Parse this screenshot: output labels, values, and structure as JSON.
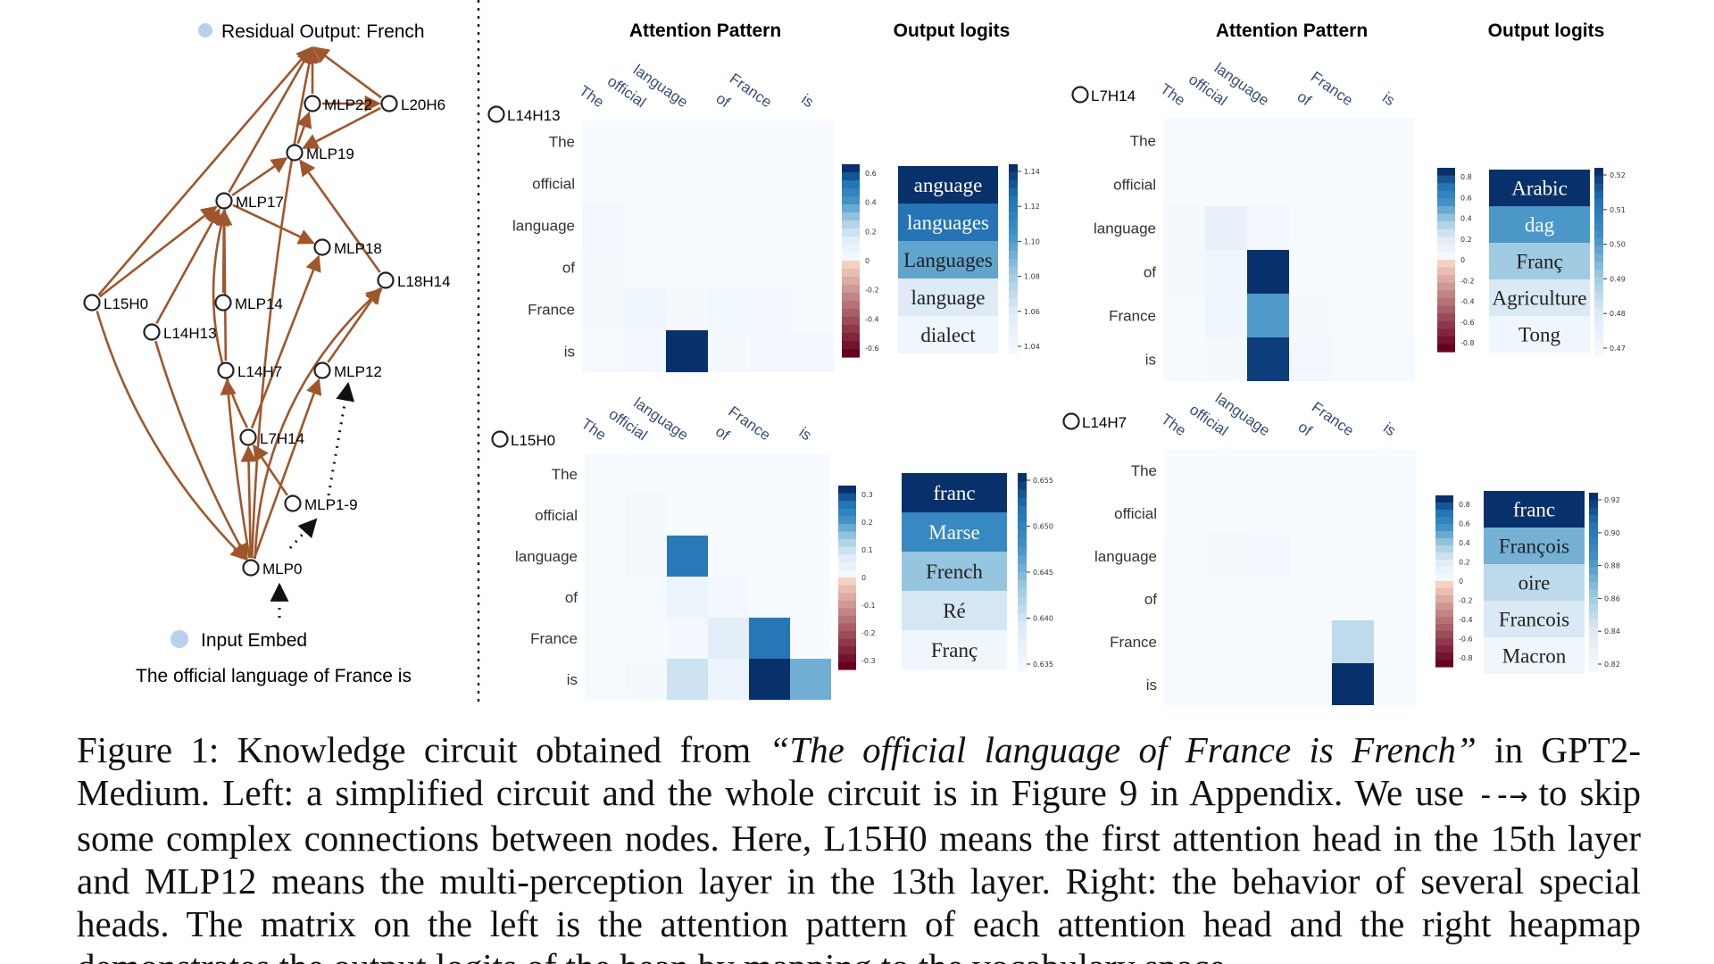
{
  "circuit": {
    "top_label": "Residual Output: French",
    "bottom_label": "Input Embed",
    "sentence": "The official language of France is",
    "nodes": [
      {
        "id": "MLP22",
        "label": "MLP22"
      },
      {
        "id": "L20H6",
        "label": "L20H6"
      },
      {
        "id": "MLP19",
        "label": "MLP19"
      },
      {
        "id": "MLP17",
        "label": "MLP17"
      },
      {
        "id": "MLP18",
        "label": "MLP18"
      },
      {
        "id": "L18H14",
        "label": "L18H14"
      },
      {
        "id": "L15H0",
        "label": "L15H0"
      },
      {
        "id": "MLP14",
        "label": "MLP14"
      },
      {
        "id": "L14H13",
        "label": "L14H13"
      },
      {
        "id": "L14H7",
        "label": "L14H7"
      },
      {
        "id": "MLP12",
        "label": "MLP12"
      },
      {
        "id": "L7H14",
        "label": "L7H14"
      },
      {
        "id": "MLP1-9",
        "label": "MLP1-9"
      },
      {
        "id": "MLP0",
        "label": "MLP0"
      }
    ],
    "colors": {
      "edge": "#a0562c",
      "node": "#c8863f",
      "dot": "#b8d0ec"
    }
  },
  "panel_headers": {
    "attention": "Attention Pattern",
    "logits": "Output logits"
  },
  "tokens_cols": [
    "The",
    "official",
    "language",
    "of",
    "France",
    "is"
  ],
  "tokens_rows": [
    "The",
    "official",
    "language",
    "of",
    "France",
    "is"
  ],
  "panels": [
    {
      "head": "L14H13",
      "attention": [
        [
          0,
          0,
          0,
          0,
          0,
          0
        ],
        [
          0.01,
          0.01,
          0,
          0,
          0,
          0
        ],
        [
          0.06,
          0.02,
          0.02,
          0,
          0,
          0
        ],
        [
          0.03,
          0.02,
          0.02,
          0.02,
          0,
          0
        ],
        [
          0.03,
          0.08,
          0.03,
          0.07,
          0.04,
          0
        ],
        [
          0.02,
          0.04,
          1.0,
          0.03,
          0.05,
          0.04
        ]
      ],
      "att_ticks": [
        "0.6",
        "0.4",
        "0.2",
        "0",
        "-0.2",
        "-0.4",
        "-0.6"
      ],
      "tokens": [
        "anguage",
        "languages",
        "Languages",
        "language",
        "dialect"
      ],
      "logits": [
        1.14,
        1.12,
        1.09,
        1.05,
        1.03
      ],
      "logit_ticks": [
        "1.14",
        "1.12",
        "1.10",
        "1.08",
        "1.06",
        "1.04"
      ]
    },
    {
      "head": "L7H14",
      "attention": [
        [
          0,
          0,
          0,
          0,
          0,
          0
        ],
        [
          0,
          0,
          0,
          0,
          0,
          0
        ],
        [
          0.03,
          0.15,
          0.04,
          0,
          0,
          0
        ],
        [
          0.03,
          0.08,
          1.0,
          0.02,
          0,
          0
        ],
        [
          0.02,
          0.08,
          0.62,
          0.03,
          0.02,
          0
        ],
        [
          0.02,
          0.03,
          0.97,
          0.04,
          0.02,
          0.02
        ]
      ],
      "att_ticks": [
        "0.8",
        "0.6",
        "0.4",
        "0.2",
        "0",
        "-0.2",
        "-0.4",
        "-0.6",
        "-0.8"
      ],
      "tokens": [
        "Arabic",
        "dag",
        "Franç",
        "Agriculture",
        "Tong"
      ],
      "logits": [
        0.52,
        0.5,
        0.49,
        0.48,
        0.47
      ],
      "logit_ticks": [
        "0.52",
        "0.51",
        "0.50",
        "0.49",
        "0.48",
        "0.47"
      ]
    },
    {
      "head": "L15H0",
      "attention": [
        [
          0.02,
          0,
          0,
          0,
          0,
          0
        ],
        [
          0.02,
          0.03,
          0,
          0,
          0,
          0
        ],
        [
          0.02,
          0.03,
          0.8,
          0,
          0,
          0
        ],
        [
          0.02,
          0.02,
          0.12,
          0.05,
          0,
          0
        ],
        [
          0.01,
          0.02,
          0.05,
          0.2,
          0.82,
          0
        ],
        [
          0.02,
          0.03,
          0.3,
          0.1,
          1.0,
          0.55
        ]
      ],
      "att_ticks": [
        "0.3",
        "0.2",
        "0.1",
        "0",
        "-0.1",
        "-0.2",
        "-0.3"
      ],
      "tokens": [
        "franc",
        "Marse",
        "French",
        "Ré",
        "Franç"
      ],
      "logits": [
        0.657,
        0.651,
        0.646,
        0.642,
        0.638
      ],
      "logit_ticks": [
        "0.655",
        "0.650",
        "0.645",
        "0.640",
        "0.635"
      ]
    },
    {
      "head": "L14H7",
      "attention": [
        [
          0,
          0,
          0,
          0,
          0,
          0
        ],
        [
          0,
          0,
          0,
          0,
          0,
          0
        ],
        [
          0.02,
          0.03,
          0.04,
          0,
          0,
          0
        ],
        [
          0.01,
          0.01,
          0.01,
          0.01,
          0,
          0
        ],
        [
          0.01,
          0.01,
          0.01,
          0.01,
          0.35,
          0
        ],
        [
          0.01,
          0.01,
          0.01,
          0.01,
          1.0,
          0.01
        ]
      ],
      "att_ticks": [
        "0.8",
        "0.6",
        "0.4",
        "0.2",
        "0",
        "-0.2",
        "-0.4",
        "-0.6",
        "-0.8"
      ],
      "tokens": [
        "franc",
        "François",
        "oire",
        "Francois",
        "Macron"
      ],
      "logits": [
        0.92,
        0.87,
        0.85,
        0.84,
        0.82
      ],
      "logit_ticks": [
        "0.92",
        "0.90",
        "0.88",
        "0.86",
        "0.84",
        "0.82"
      ]
    }
  ],
  "caption": {
    "prefix": "Figure 1: Knowledge circuit obtained from ",
    "quote": "“The official language of France is French”",
    "mid": " in GPT2-Medium. Left: a simplified circuit and the whole circuit is in Figure 9 in Appendix. We use ",
    "arrow": "--→",
    "rest": " to skip some complex connections between nodes. Here, L15H0 means the first attention head in the 15th layer and MLP12 means the multi-perception layer in the 13th layer. Right: the behavior of several special heads. The matrix on the left is the attention pattern of each attention head and the right heapmap demonstrates the output logits of the hean by mapping to the vocabulary space."
  }
}
